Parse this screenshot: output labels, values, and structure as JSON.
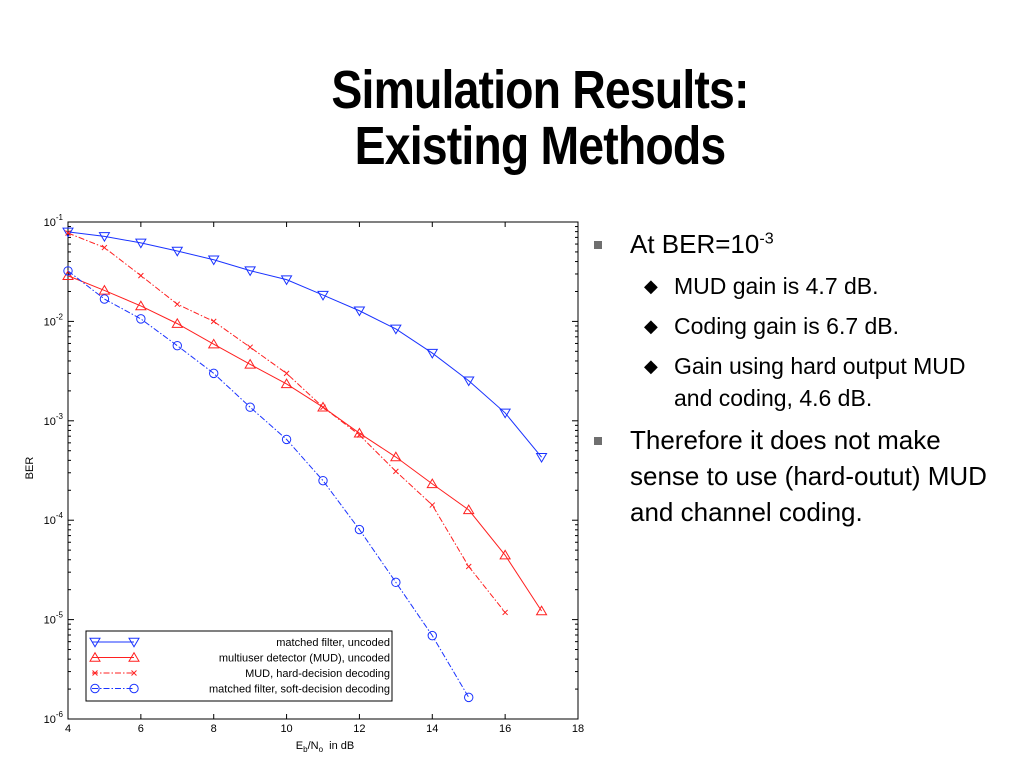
{
  "slide": {
    "title_line1": "Simulation Results:",
    "title_line2": "Existing Methods",
    "bullet1": {
      "pre": "At BER=10",
      "sup": "-3"
    },
    "sub_bullets": [
      "MUD gain is 4.7 dB.",
      "Coding gain is 6.7 dB.",
      "Gain using hard output MUD and coding, 4.6 dB."
    ],
    "bullet2": "Therefore it does not make sense to use (hard-outut) MUD and channel coding.",
    "sub_bullet_marker": "◆"
  },
  "chart_data": {
    "type": "line",
    "ylabel": "BER",
    "xlabel": {
      "main": "E",
      "sub1": "b",
      "mid": "/N",
      "sub2": "o",
      "tail": "  in dB"
    },
    "xlim": [
      4,
      18
    ],
    "ylim": [
      1e-06,
      0.1
    ],
    "yscale": "log",
    "xticks": [
      4,
      6,
      8,
      10,
      12,
      14,
      16,
      18
    ],
    "yticks": [
      {
        "value": 0.1,
        "base": "10",
        "exp": "-1"
      },
      {
        "value": 0.01,
        "base": "10",
        "exp": "-2"
      },
      {
        "value": 0.001,
        "base": "10",
        "exp": "-3"
      },
      {
        "value": 0.0001,
        "base": "10",
        "exp": "-4"
      },
      {
        "value": 1e-05,
        "base": "10",
        "exp": "-5"
      },
      {
        "value": 1e-06,
        "base": "10",
        "exp": "-6"
      }
    ],
    "grid": false,
    "legend_position": "bottom-left",
    "series": [
      {
        "name": "matched filter, uncoded",
        "color": "#1a33ff",
        "dash": "solid",
        "marker": "triangle-down",
        "x": [
          4,
          5,
          6,
          7,
          8,
          9,
          10,
          11,
          12,
          13,
          14,
          15,
          16,
          17
        ],
        "y": [
          0.0795,
          0.0716,
          0.0617,
          0.0511,
          0.0417,
          0.0324,
          0.0263,
          0.0184,
          0.0128,
          0.0084,
          0.0048,
          0.00253,
          0.0012,
          0.00043
        ]
      },
      {
        "name": "multiuser detector (MUD), uncoded",
        "color": "#ff2020",
        "dash": "solid",
        "marker": "triangle-up",
        "x": [
          4,
          5,
          6,
          7,
          8,
          9,
          10,
          11,
          12,
          13,
          14,
          15,
          16,
          17
        ],
        "y": [
          0.0288,
          0.0205,
          0.0143,
          0.0095,
          0.0059,
          0.0037,
          0.00235,
          0.00137,
          0.00075,
          0.000432,
          0.000232,
          0.000127,
          4.45e-05,
          1.22e-05
        ]
      },
      {
        "name": "MUD, hard-decision decoding",
        "color": "#ff2020",
        "dash": "dashdot",
        "marker": "x",
        "x": [
          4,
          5,
          6,
          7,
          8,
          9,
          10,
          11,
          12,
          13,
          14,
          15,
          16
        ],
        "y": [
          0.0775,
          0.0553,
          0.0289,
          0.0149,
          0.01,
          0.0055,
          0.003,
          0.00137,
          0.00072,
          0.00031,
          0.000142,
          3.42e-05,
          1.18e-05
        ]
      },
      {
        "name": "matched filter, soft-decision decoding",
        "color": "#1a33ff",
        "dash": "dashdot",
        "marker": "circle",
        "x": [
          4,
          5,
          6,
          7,
          8,
          9,
          10,
          11,
          12,
          13,
          14,
          15
        ],
        "y": [
          0.0322,
          0.0168,
          0.0106,
          0.0057,
          0.003,
          0.00137,
          0.00065,
          0.00025,
          8.05e-05,
          2.37e-05,
          6.9e-06,
          1.65e-06
        ]
      }
    ]
  }
}
